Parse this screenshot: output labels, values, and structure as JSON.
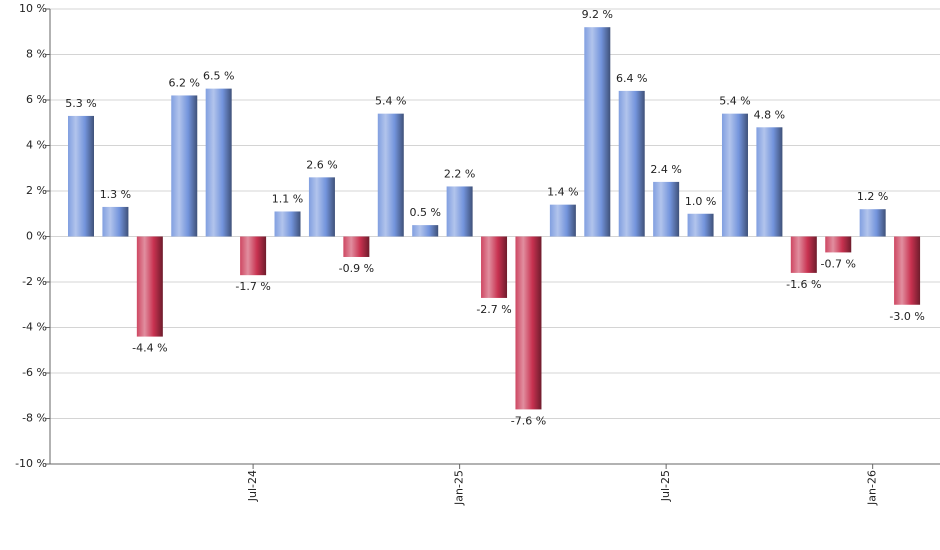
{
  "chart_data": {
    "type": "bar",
    "categories": [
      null,
      null,
      null,
      null,
      null,
      "Jul-24",
      null,
      null,
      null,
      null,
      null,
      "Jan-25",
      null,
      null,
      null,
      null,
      null,
      "Jul-25",
      null,
      null,
      null,
      null,
      null,
      "Jan-26",
      null
    ],
    "values": [
      5.3,
      1.3,
      -4.4,
      6.2,
      6.5,
      -1.7,
      1.1,
      2.6,
      -0.9,
      5.4,
      0.5,
      2.2,
      -2.7,
      -7.6,
      1.4,
      9.2,
      6.4,
      2.4,
      1.0,
      5.4,
      4.8,
      -1.6,
      -0.7,
      1.2,
      -3.0
    ],
    "value_labels": [
      "5.3 %",
      "1.3 %",
      "-4.4 %",
      "6.2 %",
      "6.5 %",
      "-1.7 %",
      "1.1 %",
      "2.6 %",
      "-0.9 %",
      "5.4 %",
      "0.5 %",
      "2.2 %",
      "-2.7 %",
      "-7.6 %",
      "1.4 %",
      "9.2 %",
      "6.4 %",
      "2.4 %",
      "1.0 %",
      "5.4 %",
      "4.8 %",
      "-1.6 %",
      "-0.7 %",
      "1.2 %",
      "-3.0 %"
    ],
    "positive_color": "#7394dc",
    "negative_color": "#c83250",
    "ylim": [
      -10,
      10
    ],
    "yticks": [
      {
        "value": -10,
        "label": "-10 %"
      },
      {
        "value": -8,
        "label": "-8 %"
      },
      {
        "value": -6,
        "label": "-6 %"
      },
      {
        "value": -4,
        "label": "-4 %"
      },
      {
        "value": -2,
        "label": "-2 %"
      },
      {
        "value": 0,
        "label": "0 %"
      },
      {
        "value": 2,
        "label": "2 %"
      },
      {
        "value": 4,
        "label": "4 %"
      },
      {
        "value": 6,
        "label": "6 %"
      },
      {
        "value": 8,
        "label": "8 %"
      },
      {
        "value": 10,
        "label": "10 %"
      }
    ],
    "grid": true
  }
}
